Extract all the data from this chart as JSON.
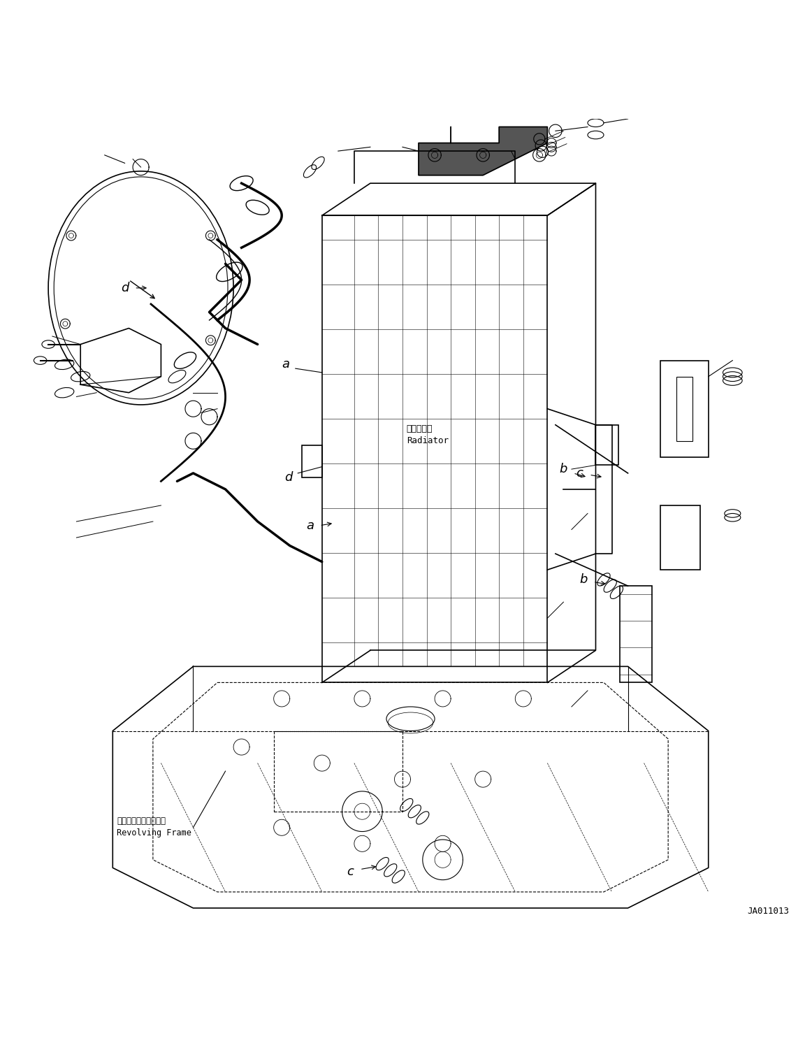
{
  "title": "",
  "bg_color": "#ffffff",
  "fig_width": 11.52,
  "fig_height": 14.92,
  "diagram_code": "JA011013",
  "labels": {
    "radiator_jp": "ラジエータ",
    "radiator_en": "Radiator",
    "revolving_frame_jp": "レボルビングフレーム",
    "revolving_frame_en": "Revolving Frame"
  },
  "line_color": "#000000",
  "text_color": "#000000",
  "label_fontsize": 13,
  "code_fontsize": 9
}
